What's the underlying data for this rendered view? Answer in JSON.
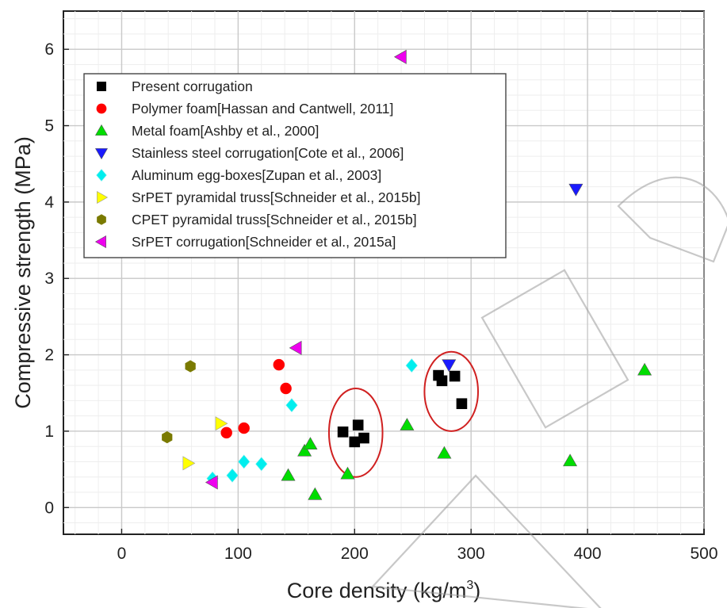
{
  "chart_data": {
    "type": "scatter",
    "title": "",
    "xlabel": "Core density (kg/m",
    "xlabel_sup": "3",
    "xlabel_end": ")",
    "ylabel": "Compressive strength (MPa)",
    "xlim": [
      -50,
      500
    ],
    "ylim": [
      -0.35,
      6.5
    ],
    "x_ticks": [
      0,
      100,
      200,
      300,
      400,
      500
    ],
    "y_ticks": [
      0,
      1,
      2,
      3,
      4,
      5,
      6
    ],
    "grid": true,
    "legend_position": "top-left",
    "series": [
      {
        "name": "Present corrugation",
        "marker": "square",
        "color": "#000000",
        "points": [
          [
            190,
            0.99
          ],
          [
            200,
            0.86
          ],
          [
            203,
            1.08
          ],
          [
            208,
            0.91
          ],
          [
            272,
            1.73
          ],
          [
            275,
            1.66
          ],
          [
            286,
            1.72
          ],
          [
            292,
            1.36
          ]
        ]
      },
      {
        "name": "Polymer foam[Hassan and Cantwell, 2011]",
        "marker": "circle",
        "color": "#ff0000",
        "points": [
          [
            90,
            0.98
          ],
          [
            105,
            1.04
          ],
          [
            135,
            1.87
          ],
          [
            141,
            1.56
          ]
        ]
      },
      {
        "name": "Metal foam[Ashby et al., 2000]",
        "marker": "triangle-up",
        "color": "#00dd00",
        "points": [
          [
            143,
            0.42
          ],
          [
            157,
            0.74
          ],
          [
            162,
            0.83
          ],
          [
            166,
            0.17
          ],
          [
            194,
            0.44
          ],
          [
            245,
            1.08
          ],
          [
            277,
            0.71
          ],
          [
            385,
            0.61
          ],
          [
            449,
            1.8
          ]
        ]
      },
      {
        "name": "Stainless steel corrugation[Cote et al., 2006]",
        "marker": "triangle-down",
        "color": "#1a1aff",
        "points": [
          [
            281,
            1.87
          ],
          [
            390,
            4.17
          ]
        ]
      },
      {
        "name": "Aluminum egg-boxes[Zupan et al., 2003]",
        "marker": "diamond",
        "color": "#00eeee",
        "points": [
          [
            78,
            0.38
          ],
          [
            95,
            0.42
          ],
          [
            105,
            0.6
          ],
          [
            120,
            0.57
          ],
          [
            146,
            1.34
          ],
          [
            249,
            1.86
          ]
        ]
      },
      {
        "name": "SrPET pyramidal truss[Schneider et al., 2015b]",
        "marker": "triangle-right",
        "color": "#ffff00",
        "points": [
          [
            57,
            0.58
          ],
          [
            85,
            1.1
          ]
        ]
      },
      {
        "name": "CPET pyramidal truss[Schneider et al., 2015b]",
        "marker": "hexagon",
        "color": "#7a7a00",
        "points": [
          [
            39,
            0.92
          ],
          [
            59,
            1.85
          ]
        ]
      },
      {
        "name": "SrPET corrugation[Schneider et al., 2015a]",
        "marker": "triangle-left",
        "color": "#ee00ee",
        "points": [
          [
            78,
            0.33
          ],
          [
            150,
            2.09
          ],
          [
            240,
            5.9
          ]
        ]
      }
    ],
    "annotations": [
      {
        "type": "ellipse",
        "center": [
          201,
          0.98
        ],
        "radius": [
          23,
          0.58
        ],
        "color": "#d02020"
      },
      {
        "type": "ellipse",
        "center": [
          283,
          1.52
        ],
        "radius": [
          23,
          0.52
        ],
        "color": "#d02020"
      }
    ]
  }
}
